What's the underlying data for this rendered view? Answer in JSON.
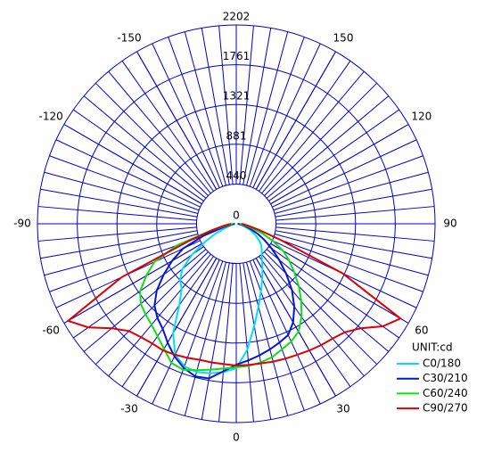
{
  "chart_data": {
    "type": "polar",
    "unit_label": "UNIT:cd",
    "rlim": [
      0,
      2202
    ],
    "rticks": [
      0,
      440,
      881,
      1321,
      1761,
      2202
    ],
    "thetaticks": [
      -150,
      -120,
      -90,
      -60,
      -30,
      0,
      30,
      60,
      90,
      120,
      150
    ],
    "grid_color": "#0000c8",
    "theta": [
      -90,
      -85,
      -80,
      -75,
      -70,
      -65,
      -60,
      -55,
      -50,
      -45,
      -40,
      -35,
      -30,
      -25,
      -20,
      -15,
      -10,
      -5,
      0,
      5,
      10,
      15,
      20,
      25,
      30,
      35,
      40,
      45,
      50,
      55,
      60,
      65,
      70,
      75,
      80,
      85,
      90
    ],
    "series": [
      {
        "name": "C0/180",
        "color": "#00e0f0",
        "values": [
          10,
          20,
          30,
          60,
          120,
          250,
          400,
          600,
          780,
          880,
          940,
          1100,
          1400,
          1600,
          1680,
          1700,
          1680,
          1650,
          1600,
          1400,
          1150,
          950,
          800,
          680,
          580,
          500,
          440,
          400,
          360,
          300,
          240,
          180,
          120,
          80,
          40,
          20,
          10
        ]
      },
      {
        "name": "C30/210",
        "color": "#0018d0",
        "values": [
          20,
          30,
          60,
          150,
          380,
          650,
          820,
          980,
          1150,
          1280,
          1360,
          1420,
          1520,
          1620,
          1700,
          1750,
          1740,
          1640,
          1560,
          1520,
          1480,
          1440,
          1400,
          1360,
          1260,
          1120,
          960,
          780,
          620,
          480,
          360,
          260,
          170,
          100,
          60,
          30,
          20
        ]
      },
      {
        "name": "C60/240",
        "color": "#10e010",
        "values": [
          40,
          60,
          120,
          300,
          700,
          1000,
          1150,
          1300,
          1380,
          1420,
          1460,
          1520,
          1600,
          1700,
          1720,
          1680,
          1640,
          1610,
          1590,
          1580,
          1560,
          1530,
          1480,
          1440,
          1380,
          1260,
          1120,
          980,
          840,
          720,
          600,
          450,
          300,
          180,
          100,
          60,
          40
        ]
      },
      {
        "name": "C90/270",
        "color": "#e00000",
        "values": [
          60,
          90,
          150,
          280,
          560,
          1400,
          2150,
          2000,
          1800,
          1680,
          1640,
          1620,
          1620,
          1600,
          1580,
          1560,
          1560,
          1560,
          1570,
          1570,
          1570,
          1580,
          1590,
          1600,
          1620,
          1640,
          1660,
          1700,
          1800,
          1980,
          2100,
          1300,
          520,
          260,
          140,
          90,
          60
        ]
      }
    ]
  }
}
